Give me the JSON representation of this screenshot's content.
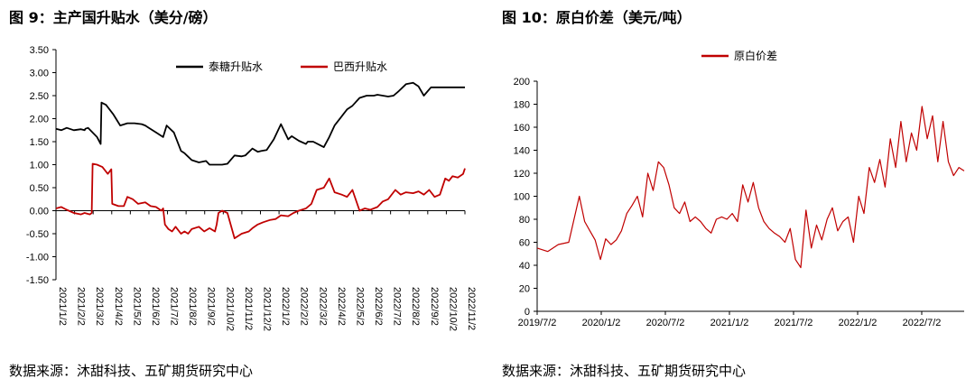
{
  "chart_data": [
    {
      "type": "line",
      "title": "图 9：主产国升贴水（美分/磅）",
      "ylim": [
        -1.5,
        3.5
      ],
      "yticks": [
        "3.50",
        "3.00",
        "2.50",
        "2.00",
        "1.50",
        "1.00",
        "0.50",
        "0.00",
        "-0.50",
        "-1.00",
        "-1.50"
      ],
      "ytick_values": [
        3.5,
        3.0,
        2.5,
        2.0,
        1.5,
        1.0,
        0.5,
        0.0,
        -0.5,
        -1.0,
        -1.5
      ],
      "xticks": [
        "2021/1/2",
        "2021/2/2",
        "2021/3/2",
        "2021/4/2",
        "2021/5/2",
        "2021/6/2",
        "2021/7/2",
        "2021/8/2",
        "2021/9/2",
        "2021/10/2",
        "2021/11/2",
        "2021/12/2",
        "2022/1/2",
        "2022/2/2",
        "2022/3/2",
        "2022/4/2",
        "2022/5/2",
        "2022/6/2",
        "2022/7/2",
        "2022/8/2",
        "2022/9/2",
        "2022/10/2",
        "2022/11/2"
      ],
      "legend_position": "top",
      "series": [
        {
          "name": "泰糖升贴水",
          "color": "#000000",
          "x": [
            0,
            0.3,
            0.6,
            1,
            1.4,
            1.6,
            1.65,
            1.8,
            2.3,
            2.5,
            2.55,
            2.8,
            3.2,
            3.6,
            4,
            4.4,
            4.8,
            5,
            5.2,
            5.6,
            6,
            6.2,
            6.6,
            7,
            7.2,
            7.6,
            8,
            8.4,
            8.6,
            9,
            9.3,
            9.6,
            10,
            10.4,
            10.6,
            11,
            11.3,
            11.5,
            11.8,
            12.2,
            12.6,
            13,
            13.2,
            13.6,
            14,
            14.1,
            14.4,
            14.8,
            15,
            15.3,
            15.6,
            16,
            16.3,
            16.6,
            17,
            17.4,
            17.8,
            18,
            18.3,
            18.6,
            18.9,
            19.2,
            19.6,
            20,
            20.3,
            20.6,
            21,
            21.3,
            21.6,
            21.9,
            22,
            22.2,
            22.4,
            22.7,
            22.9
          ],
          "y": [
            1.78,
            1.75,
            1.8,
            1.75,
            1.77,
            1.75,
            1.78,
            1.8,
            1.6,
            1.45,
            2.35,
            2.3,
            2.1,
            1.85,
            1.9,
            1.9,
            1.88,
            1.85,
            1.8,
            1.7,
            1.6,
            1.85,
            1.7,
            1.3,
            1.25,
            1.1,
            1.05,
            1.08,
            1.0,
            1.0,
            1.0,
            1.02,
            1.2,
            1.18,
            1.2,
            1.35,
            1.28,
            1.3,
            1.32,
            1.55,
            1.88,
            1.55,
            1.62,
            1.52,
            1.45,
            1.5,
            1.5,
            1.42,
            1.38,
            1.6,
            1.85,
            2.05,
            2.2,
            2.28,
            2.45,
            2.5,
            2.5,
            2.52,
            2.5,
            2.48,
            2.5,
            2.6,
            2.75,
            2.78,
            2.7,
            2.5,
            2.68,
            2.68,
            2.68,
            2.68,
            2.68,
            2.68,
            2.68,
            2.68,
            2.68
          ]
        },
        {
          "name": "巴西升贴水",
          "color": "#c00000",
          "x": [
            0,
            0.3,
            0.6,
            1,
            1.4,
            1.6,
            1.9,
            2.0,
            2.05,
            2.3,
            2.6,
            2.9,
            3.1,
            3.15,
            3.5,
            3.8,
            4,
            4.3,
            4.6,
            5,
            5.3,
            5.6,
            5.9,
            6.0,
            6.1,
            6.3,
            6.5,
            6.7,
            7,
            7.2,
            7.4,
            7.6,
            8,
            8.3,
            8.6,
            8.9,
            9,
            9.1,
            9.3,
            9.6,
            10,
            10.4,
            10.8,
            11,
            11.3,
            11.6,
            12,
            12.3,
            12.6,
            13,
            13.3,
            13.6,
            14,
            14.3,
            14.6,
            15,
            15.3,
            15.6,
            16,
            16.3,
            16.6,
            17,
            17.3,
            17.6,
            18,
            18.3,
            18.6,
            19,
            19.3,
            19.6,
            20,
            20.3,
            20.6,
            20.9,
            21.2,
            21.5,
            21.8,
            22,
            22.2,
            22.5,
            22.8,
            22.9
          ],
          "y": [
            0.05,
            0.08,
            0.02,
            -0.05,
            -0.08,
            -0.05,
            -0.08,
            -0.05,
            1.02,
            1.0,
            0.95,
            0.8,
            0.9,
            0.15,
            0.1,
            0.1,
            0.3,
            0.25,
            0.15,
            0.18,
            0.1,
            0.08,
            0.0,
            0.05,
            -0.3,
            -0.4,
            -0.45,
            -0.35,
            -0.5,
            -0.45,
            -0.5,
            -0.4,
            -0.35,
            -0.45,
            -0.38,
            -0.45,
            -0.3,
            -0.05,
            0.0,
            -0.05,
            -0.6,
            -0.5,
            -0.45,
            -0.38,
            -0.3,
            -0.25,
            -0.2,
            -0.18,
            -0.1,
            -0.12,
            -0.05,
            0.0,
            0.05,
            0.15,
            0.45,
            0.5,
            0.7,
            0.4,
            0.35,
            0.3,
            0.45,
            0.0,
            0.05,
            0.02,
            0.08,
            0.2,
            0.25,
            0.45,
            0.35,
            0.4,
            0.38,
            0.42,
            0.35,
            0.45,
            0.3,
            0.35,
            0.7,
            0.65,
            0.75,
            0.72,
            0.8,
            0.92
          ]
        }
      ]
    },
    {
      "type": "line",
      "title": "图 10：原白价差（美元/吨）",
      "ylim": [
        0,
        200
      ],
      "yticks": [
        "200",
        "180",
        "160",
        "140",
        "120",
        "100",
        "80",
        "60",
        "40",
        "20",
        "0"
      ],
      "ytick_values": [
        200,
        180,
        160,
        140,
        120,
        100,
        80,
        60,
        40,
        20,
        0
      ],
      "xticks": [
        "2019/7/2",
        "2020/1/2",
        "2020/7/2",
        "2021/1/2",
        "2021/7/2",
        "2022/1/2",
        "2022/7/2"
      ],
      "legend_position": "top",
      "series": [
        {
          "name": "原白价差",
          "color": "#c00000",
          "x": [
            0,
            1,
            2,
            3,
            4,
            4.5,
            5,
            5.5,
            6,
            6.5,
            7,
            7.5,
            8,
            8.5,
            9,
            9.5,
            10,
            10.5,
            11,
            11.5,
            12,
            12.5,
            13,
            13.5,
            14,
            14.5,
            15,
            15.5,
            16,
            16.5,
            17,
            17.5,
            18,
            18.5,
            19,
            19.5,
            20,
            20.5,
            21,
            21.5,
            22,
            22.5,
            23,
            23.5,
            24,
            24.5,
            25,
            25.5,
            26,
            26.5,
            27,
            27.5,
            28,
            28.5,
            29,
            29.5,
            30,
            30.5,
            31,
            31.5,
            32,
            32.5,
            33,
            33.5,
            34,
            34.5,
            35,
            35.5,
            36,
            36.5,
            37,
            37.5,
            38,
            38.5,
            39,
            39.5,
            40,
            40.5
          ],
          "y": [
            55,
            52,
            58,
            60,
            100,
            78,
            70,
            62,
            45,
            63,
            58,
            62,
            70,
            85,
            92,
            100,
            82,
            120,
            105,
            130,
            125,
            110,
            90,
            85,
            95,
            78,
            82,
            78,
            72,
            68,
            80,
            82,
            80,
            85,
            78,
            110,
            95,
            112,
            90,
            78,
            72,
            68,
            65,
            60,
            72,
            45,
            38,
            88,
            55,
            75,
            62,
            80,
            90,
            70,
            78,
            82,
            60,
            100,
            85,
            125,
            112,
            132,
            108,
            150,
            125,
            165,
            130,
            155,
            140,
            178,
            150,
            170,
            130,
            165,
            130,
            118,
            125,
            122
          ]
        }
      ]
    }
  ],
  "labels": {
    "title1": "图 9：主产国升贴水（美分/磅）",
    "title2": "图 10：原白价差（美元/吨）",
    "source1": "数据来源：沐甜科技、五矿期货研究中心",
    "source2": "数据来源：沐甜科技、五矿期货研究中心",
    "legend1a": "泰糖升贴水",
    "legend1b": "巴西升贴水",
    "legend2": "原白价差"
  }
}
